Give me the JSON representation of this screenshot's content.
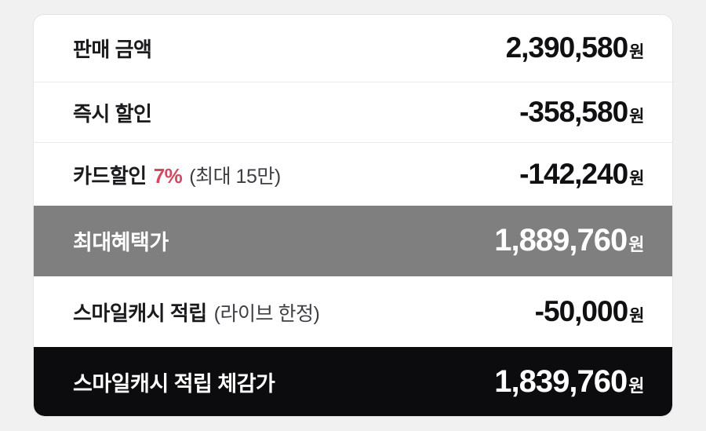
{
  "colors": {
    "page_bg": "#f1f1f2",
    "card_bg": "#ffffff",
    "card_border": "#e4e4e6",
    "divider": "#ececee",
    "label_text": "#1b1b1e",
    "value_text": "#101013",
    "accent_red": "#d04a63",
    "gray_row_bg": "#7f7f7f",
    "black_row_bg": "#0c0c0e",
    "inverse_text": "#ffffff"
  },
  "price_table": {
    "rows": [
      {
        "label": "판매 금액",
        "value": "2,390,580",
        "unit": "원",
        "variant": "normal"
      },
      {
        "label": "즉시 할인",
        "value": "-358,580",
        "unit": "원",
        "variant": "normal"
      },
      {
        "label": "카드할인",
        "percent": "7%",
        "note": "(최대 15만)",
        "value": "-142,240",
        "unit": "원",
        "variant": "normal"
      },
      {
        "label": "최대혜택가",
        "value": "1,889,760",
        "unit": "원",
        "variant": "gray"
      },
      {
        "label": "스마일캐시 적립",
        "note": "(라이브 한정)",
        "value": "-50,000",
        "unit": "원",
        "variant": "normal"
      },
      {
        "label": "스마일캐시 적립 체감가",
        "value": "1,839,760",
        "unit": "원",
        "variant": "black"
      }
    ]
  }
}
